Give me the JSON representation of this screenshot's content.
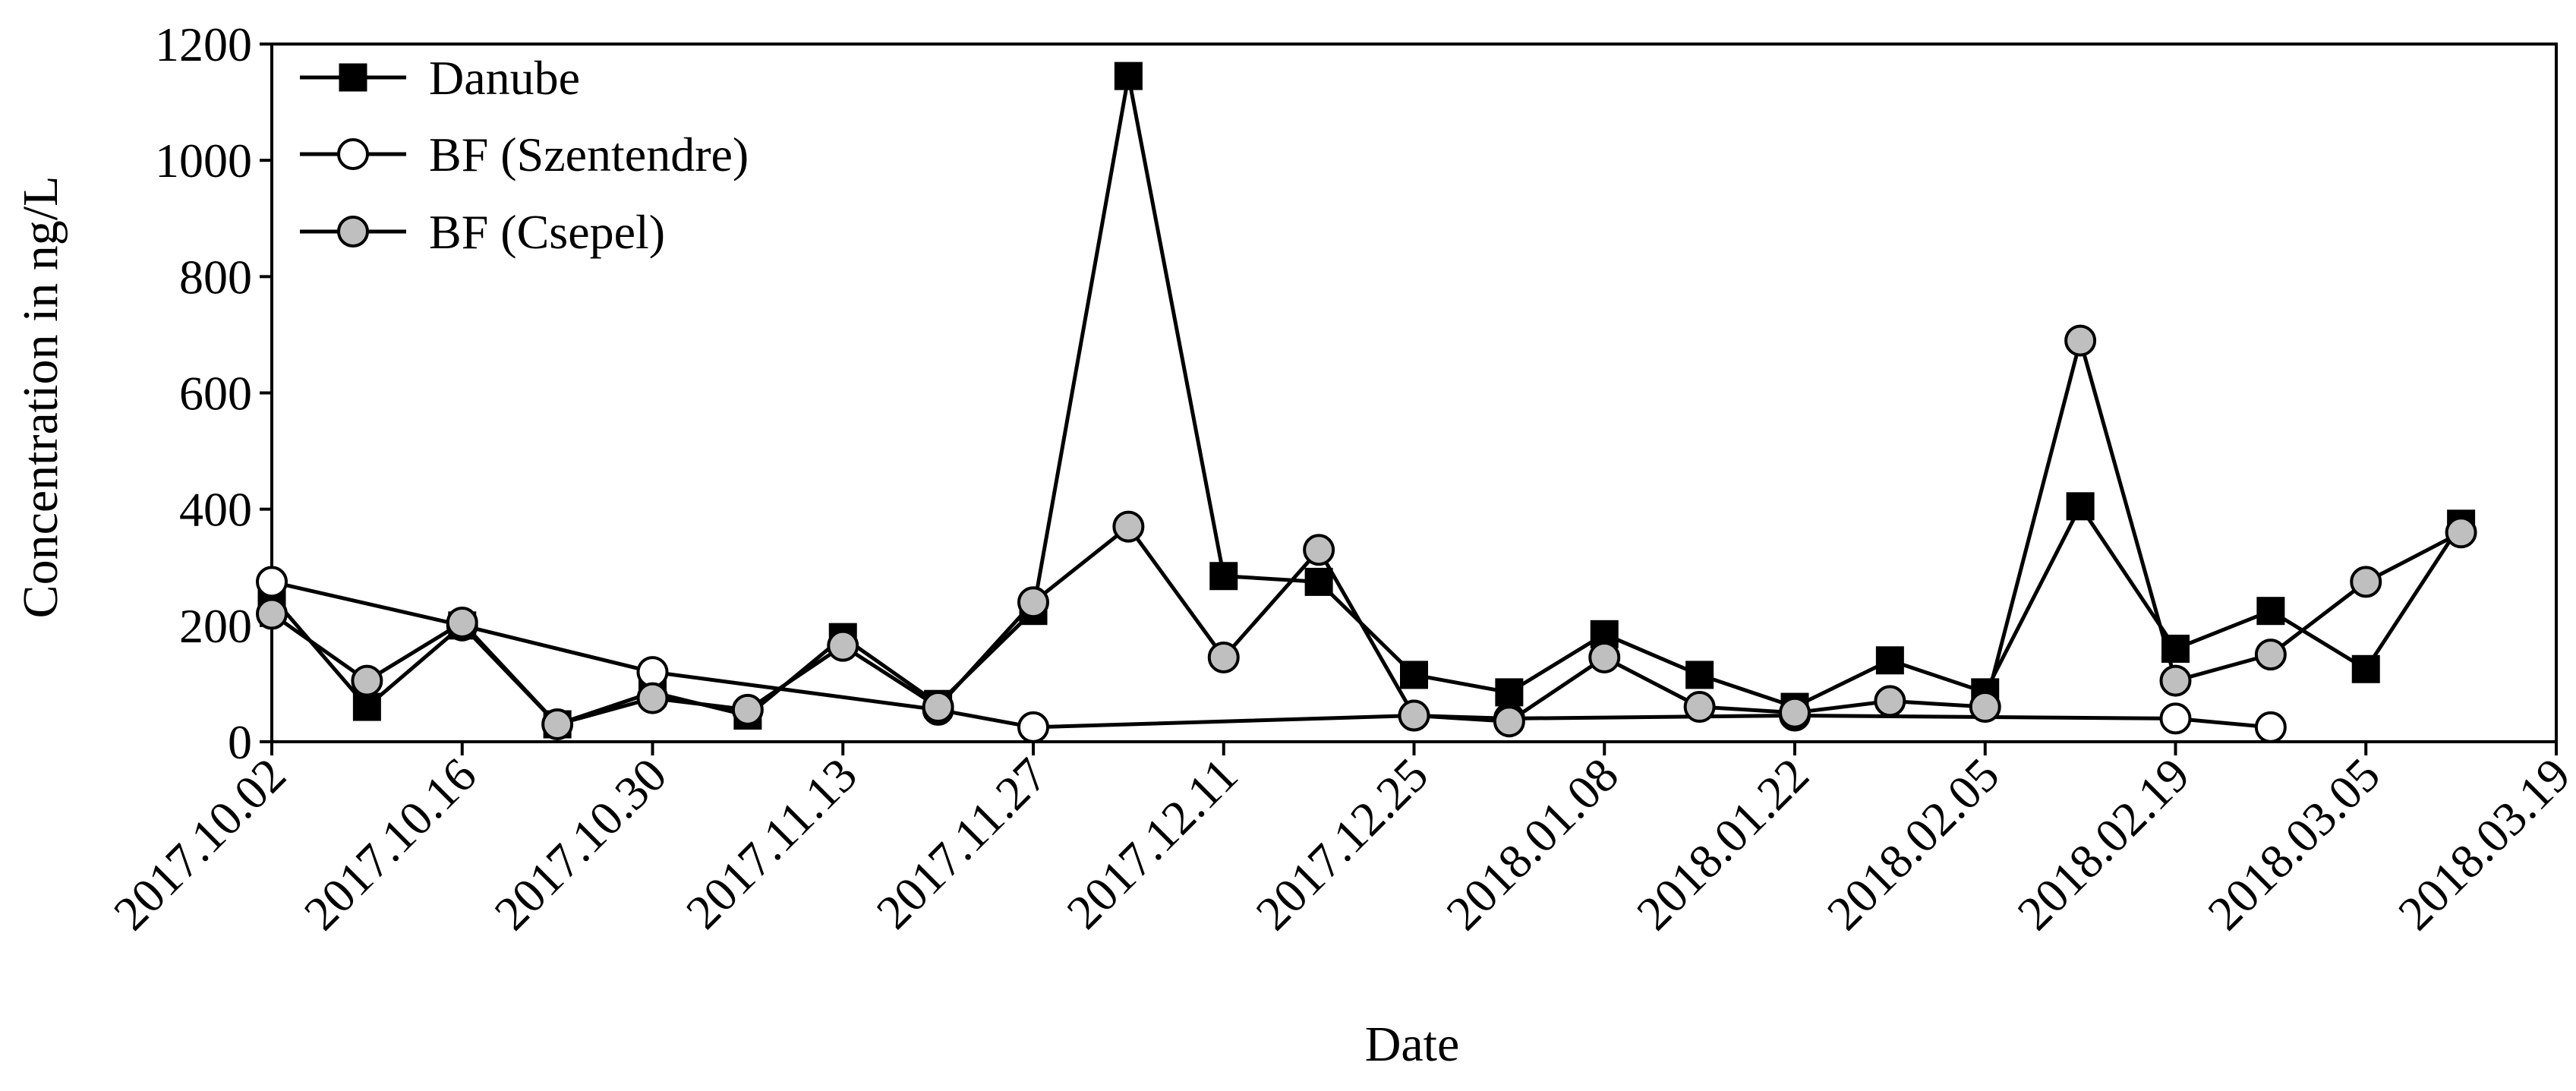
{
  "chart_data": {
    "type": "line",
    "xlabel": "Date",
    "ylabel": "Concentration in ng/L",
    "ylim": [
      0,
      1200
    ],
    "yticks": [
      "0",
      "200",
      "400",
      "600",
      "800",
      "1000",
      "1200"
    ],
    "xlim": [
      "2017-10-02",
      "2018-03-19"
    ],
    "xtick_dates": [
      "2017-10-02",
      "2017-10-16",
      "2017-10-30",
      "2017-11-13",
      "2017-11-27",
      "2017-12-11",
      "2017-12-25",
      "2018-01-08",
      "2018-01-22",
      "2018-02-05",
      "2018-02-19",
      "2018-03-05",
      "2018-03-19"
    ],
    "xticks": [
      "2017.10.02",
      "2017.10.16",
      "2017.10.30",
      "2017.11.13",
      "2017.11.27",
      "2017.12.11",
      "2017.12.25",
      "2018.01.08",
      "2018.01.22",
      "2018.02.05",
      "2018.02.19",
      "2018.03.05",
      "2018.03.19"
    ],
    "grid": false,
    "legend_position": "top-left",
    "series": [
      {
        "name": "Danube",
        "marker": "square",
        "marker_color": "#000000",
        "points": [
          [
            "2017-10-02",
            250
          ],
          [
            "2017-10-09",
            60
          ],
          [
            "2017-10-16",
            200
          ],
          [
            "2017-10-23",
            30
          ],
          [
            "2017-10-30",
            85
          ],
          [
            "2017-11-06",
            45
          ],
          [
            "2017-11-13",
            180
          ],
          [
            "2017-11-20",
            65
          ],
          [
            "2017-11-27",
            225
          ],
          [
            "2017-12-04",
            1145
          ],
          [
            "2017-12-11",
            285
          ],
          [
            "2017-12-18",
            275
          ],
          [
            "2017-12-25",
            115
          ],
          [
            "2018-01-01",
            85
          ],
          [
            "2018-01-08",
            185
          ],
          [
            "2018-01-15",
            115
          ],
          [
            "2018-01-22",
            60
          ],
          [
            "2018-01-29",
            140
          ],
          [
            "2018-02-05",
            85
          ],
          [
            "2018-02-12",
            405
          ],
          [
            "2018-02-19",
            160
          ],
          [
            "2018-02-26",
            225
          ],
          [
            "2018-03-05",
            125
          ],
          [
            "2018-03-12",
            375
          ]
        ]
      },
      {
        "name": "BF (Szentendre)",
        "marker": "circle",
        "marker_color": "#ffffff",
        "points": [
          [
            "2017-10-02",
            275
          ],
          [
            "2017-10-16",
            200
          ],
          [
            "2017-10-30",
            120
          ],
          [
            "2017-11-20",
            55
          ],
          [
            "2017-11-27",
            25
          ],
          [
            "2017-12-25",
            45
          ],
          [
            "2018-01-01",
            40
          ],
          [
            "2018-01-22",
            45
          ],
          [
            "2018-02-19",
            40
          ],
          [
            "2018-02-26",
            25
          ]
        ]
      },
      {
        "name": "BF (Csepel)",
        "marker": "circle",
        "marker_color": "#bfbfbf",
        "points": [
          [
            "2017-10-02",
            220
          ],
          [
            "2017-10-09",
            105
          ],
          [
            "2017-10-16",
            205
          ],
          [
            "2017-10-23",
            30
          ],
          [
            "2017-10-30",
            75
          ],
          [
            "2017-11-06",
            55
          ],
          [
            "2017-11-13",
            165
          ],
          [
            "2017-11-20",
            60
          ],
          [
            "2017-11-27",
            240
          ],
          [
            "2017-12-04",
            370
          ],
          [
            "2017-12-11",
            145
          ],
          [
            "2017-12-18",
            330
          ],
          [
            "2017-12-25",
            45
          ],
          [
            "2018-01-01",
            35
          ],
          [
            "2018-01-08",
            145
          ],
          [
            "2018-01-15",
            60
          ],
          [
            "2018-01-22",
            50
          ],
          [
            "2018-01-29",
            70
          ],
          [
            "2018-02-05",
            60
          ],
          [
            "2018-02-12",
            690
          ],
          [
            "2018-02-19",
            105
          ],
          [
            "2018-02-26",
            150
          ],
          [
            "2018-03-05",
            275
          ],
          [
            "2018-03-12",
            360
          ]
        ]
      }
    ]
  }
}
